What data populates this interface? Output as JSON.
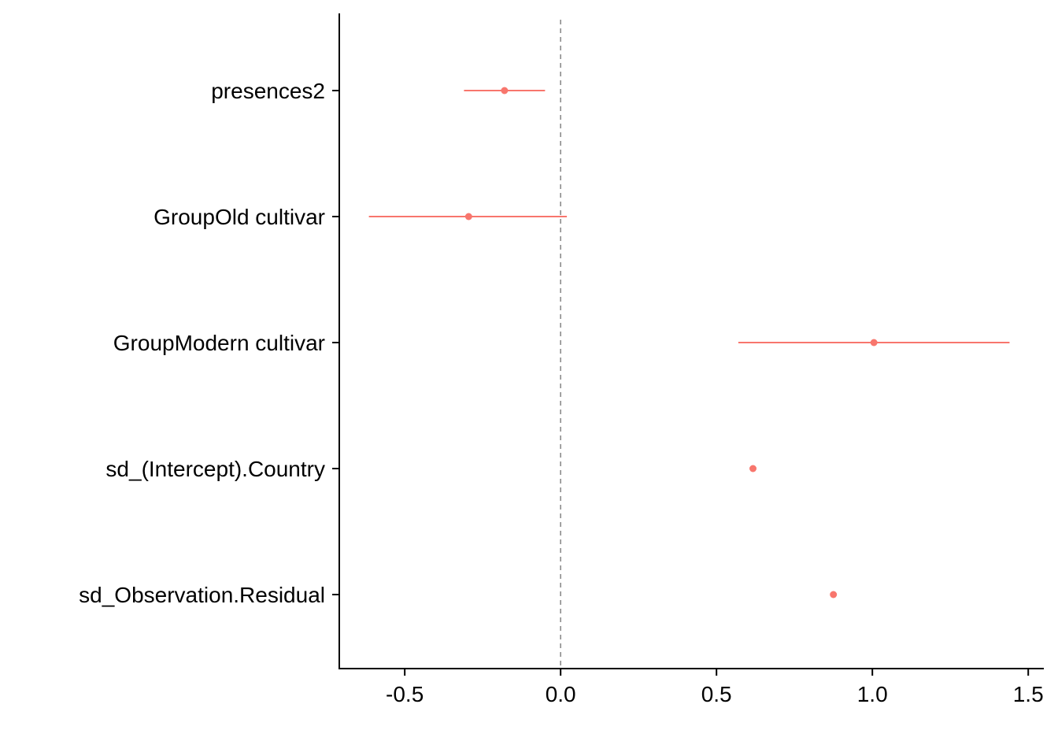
{
  "chart_data": {
    "type": "forest",
    "title": "",
    "xlabel": "",
    "ylabel": "",
    "xlim": [
      -0.71,
      1.55
    ],
    "x_ticks": [
      -0.5,
      0.0,
      0.5,
      1.0,
      1.5
    ],
    "x_tick_labels": [
      "-0.5",
      "0.0",
      "0.5",
      "1.0",
      "1.5"
    ],
    "reference_line": 0.0,
    "color": "#F8766D",
    "categories": [
      "presences2",
      "GroupOld cultivar",
      "GroupModern cultivar",
      "sd_(Intercept).Country",
      "sd_Observation.Residual"
    ],
    "estimates": [
      -0.18,
      -0.295,
      1.005,
      0.617,
      0.875
    ],
    "lower": [
      -0.31,
      -0.615,
      0.57,
      null,
      null
    ],
    "upper": [
      -0.05,
      0.02,
      1.44,
      null,
      null
    ]
  }
}
